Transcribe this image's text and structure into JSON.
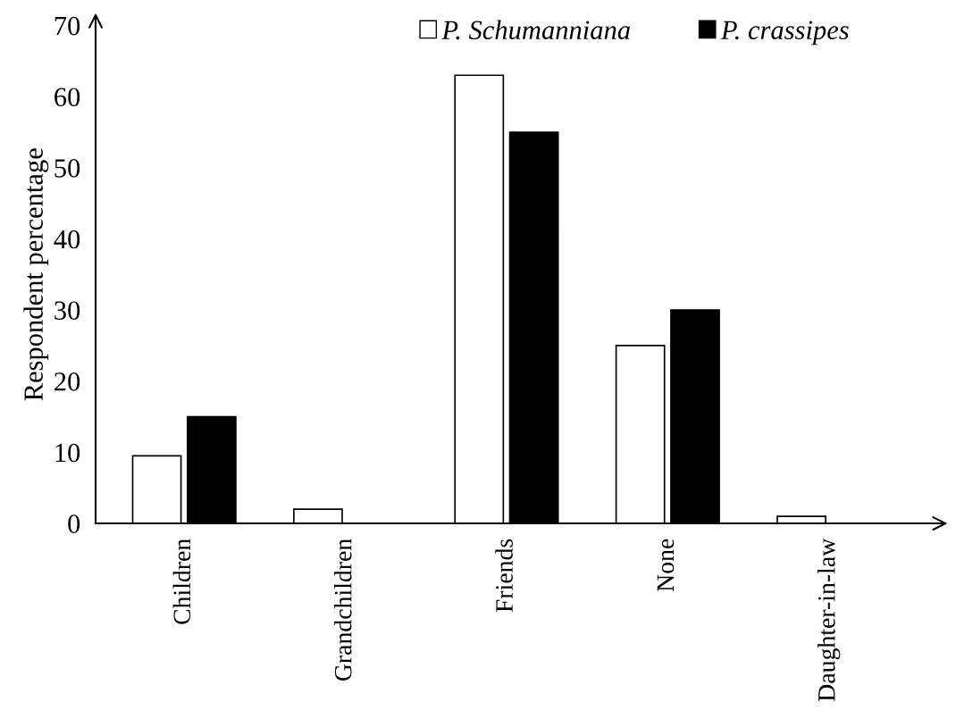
{
  "chart_data": {
    "type": "bar",
    "ylabel": "Respondent percentage",
    "categories": [
      "Children",
      "Grandchildren",
      "Friends",
      "None",
      "Daughter-in-law"
    ],
    "series": [
      {
        "name": "P. Schumanniana",
        "color": "#ffffff",
        "values": [
          9.5,
          2,
          63,
          25,
          1
        ]
      },
      {
        "name": "P. crassipes",
        "color": "#000000",
        "values": [
          15,
          0,
          55,
          30,
          0
        ]
      }
    ],
    "ylim": [
      0,
      70
    ],
    "yticks": [
      0,
      10,
      20,
      30,
      40,
      50,
      60,
      70
    ],
    "grid": false,
    "legend": "top right"
  }
}
